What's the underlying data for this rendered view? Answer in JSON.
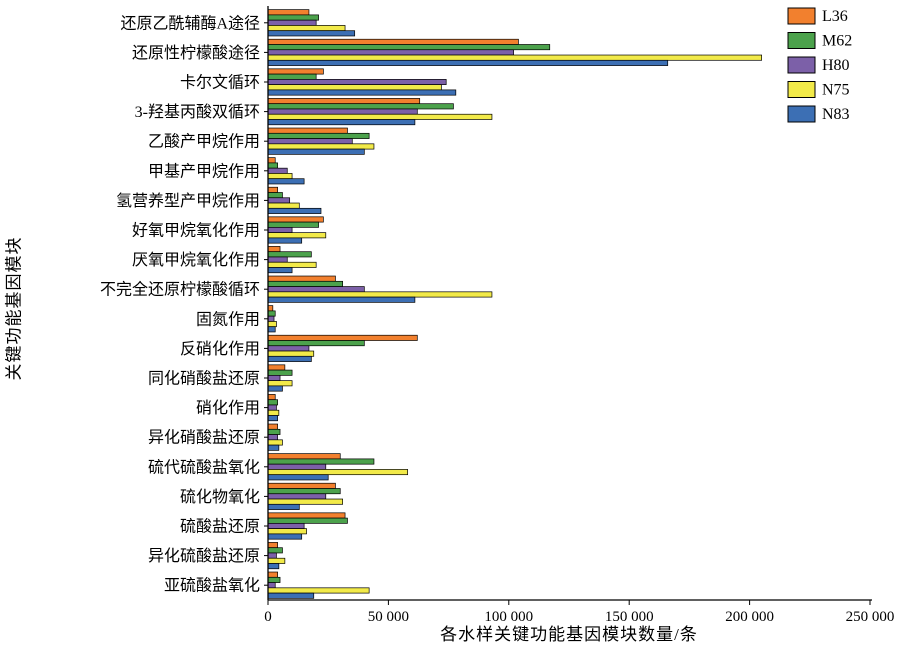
{
  "chart_data": {
    "type": "bar",
    "orientation": "horizontal",
    "title": "",
    "xlabel": "各水样关键功能基因模块数量/条",
    "ylabel": "关键功能基因模块",
    "xlim": [
      0,
      250000
    ],
    "xticks": {
      "values": [
        0,
        50000,
        100000,
        150000,
        200000,
        250000
      ],
      "labels": [
        "0",
        "50 000",
        "100 000",
        "150 000",
        "200 000",
        "250 000"
      ]
    },
    "grid": false,
    "legend_position": "top-right",
    "categories": [
      "还原乙酰辅酶A途径",
      "还原性柠檬酸途径",
      "卡尔文循环",
      "3-羟基丙酸双循环",
      "乙酸产甲烷作用",
      "甲基产甲烷作用",
      "氢营养型产甲烷作用",
      "好氧甲烷氧化作用",
      "厌氧甲烷氧化作用",
      "不完全还原柠檬酸循环",
      "固氮作用",
      "反硝化作用",
      "同化硝酸盐还原",
      "硝化作用",
      "异化硝酸盐还原",
      "硫代硫酸盐氧化",
      "硫化物氧化",
      "硫酸盐还原",
      "异化硫酸盐还原",
      "亚硫酸盐氧化"
    ],
    "series": [
      {
        "name": "L36",
        "color": "#F2802E",
        "values": [
          17000,
          104000,
          23000,
          63000,
          33000,
          3000,
          4000,
          23000,
          5000,
          28000,
          2000,
          62000,
          7000,
          3000,
          4000,
          30000,
          28000,
          32000,
          4000,
          4000
        ]
      },
      {
        "name": "M62",
        "color": "#4CA24C",
        "values": [
          21000,
          117000,
          20000,
          77000,
          42000,
          4000,
          6000,
          21000,
          18000,
          31000,
          3000,
          40000,
          10000,
          4000,
          5000,
          44000,
          30000,
          33000,
          6000,
          5000
        ]
      },
      {
        "name": "H80",
        "color": "#7C60A8",
        "values": [
          20000,
          102000,
          74000,
          62000,
          35000,
          8000,
          9000,
          10000,
          8000,
          40000,
          2500,
          17000,
          5000,
          3500,
          4000,
          24000,
          24000,
          15000,
          3500,
          3000
        ]
      },
      {
        "name": "N75",
        "color": "#F2EA49",
        "values": [
          32000,
          205000,
          72000,
          93000,
          44000,
          10000,
          13000,
          24000,
          20000,
          93000,
          3500,
          19000,
          10000,
          4500,
          6000,
          58000,
          31000,
          16000,
          7000,
          42000
        ]
      },
      {
        "name": "N83",
        "color": "#3C6FB4",
        "values": [
          36000,
          166000,
          78000,
          61000,
          40000,
          15000,
          22000,
          14000,
          10000,
          61000,
          3000,
          18000,
          6000,
          4000,
          4500,
          25000,
          13000,
          14000,
          4500,
          19000
        ]
      }
    ],
    "axis_color": "#000000",
    "bar_outline_color": "#000000"
  }
}
